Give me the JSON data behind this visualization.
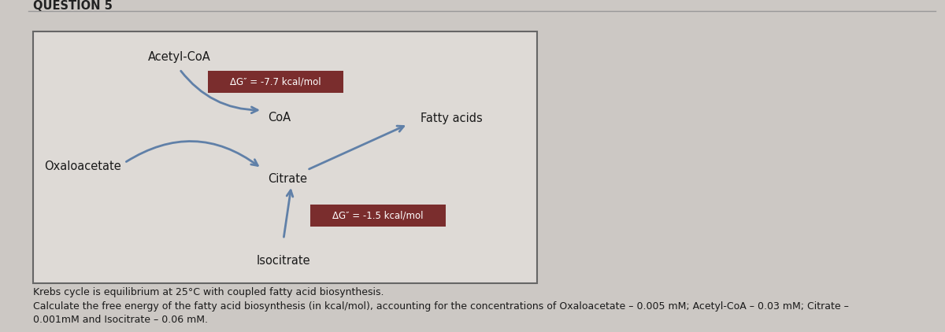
{
  "title": "QUESTION 5",
  "background_color": "#ccc8c4",
  "box_bg": "#dedad6",
  "box_edge": "#666666",
  "arrow_color": "#6080a8",
  "label_acetyl_coa": "Acetyl-CoA",
  "label_coa": "CoA",
  "label_fatty_acids": "Fatty acids",
  "label_oxaloacetate": "Oxaloacetate",
  "label_citrate": "Citrate",
  "label_isocitrate": "Isocitrate",
  "dg1_label": "ΔG″ = -7.7 kcal/mol",
  "dg2_label": "ΔG″ = -1.5 kcal/mol",
  "dg_box_color": "#7a2d2d",
  "dg_text_color": "#ffffff",
  "footer_line1": "Krebs cycle is equilibrium at 25°C with coupled fatty acid biosynthesis.",
  "footer_line2": "Calculate the free energy of the fatty acid biosynthesis (in kcal/mol), accounting for the concentrations of Oxaloacetate – 0.005 mM; Acetyl-CoA – 0.03 mM; Citrate –",
  "footer_line3": "0.001mM and Isocitrate – 0.06 mM."
}
